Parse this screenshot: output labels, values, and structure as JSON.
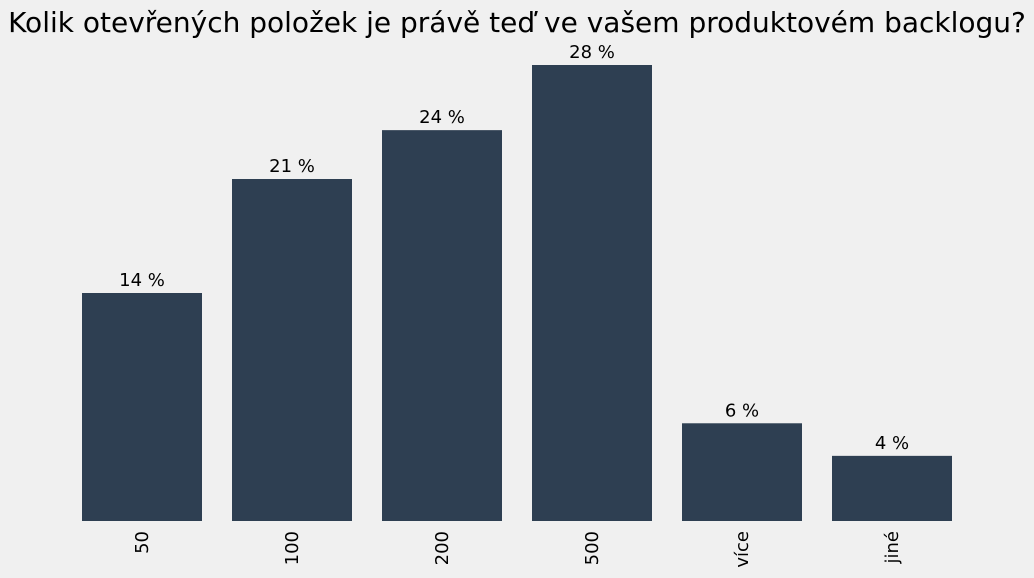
{
  "chart_data": {
    "type": "bar",
    "title": "Kolik otevřených položek je právě teď ve vašem produktovém backlogu?",
    "categories": [
      "50",
      "100",
      "200",
      "500",
      "více",
      "jiné"
    ],
    "values": [
      14,
      21,
      24,
      28,
      6,
      4
    ],
    "value_labels": [
      "14 %",
      "21 %",
      "24 %",
      "28 %",
      "6 %",
      "4 %"
    ],
    "ylim": [
      0,
      28
    ],
    "grid": false,
    "legend": "none",
    "bar_color": "#2e3f52",
    "background_color": "#f0f0f0"
  }
}
